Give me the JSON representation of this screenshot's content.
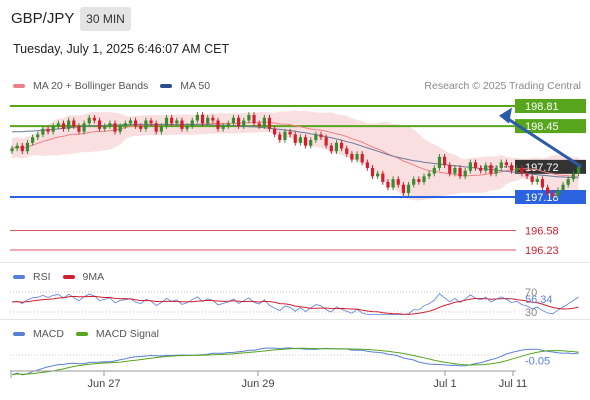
{
  "header": {
    "pair": "GBP/JPY",
    "timeframe": "30 MIN",
    "datetime": "Tuesday, July 1, 2025 6:46:07 AM CET",
    "credit": "Research © 2025 Trading Central"
  },
  "legend": {
    "ma20_label": "MA 20 + Bollinger Bands",
    "ma50_label": "MA 50",
    "rsi_label": "RSI",
    "rsi_ma_label": "9MA",
    "macd_label": "MACD",
    "macd_signal_label": "MACD Signal"
  },
  "colors": {
    "bull": "#3a8a2f",
    "bear": "#d0202e",
    "bollinger": "#f6c9cc",
    "ma20": "#f08088",
    "ma50": "#6a7a9a",
    "resistance": "#56a51c",
    "support": "#2b62e0",
    "target": "#d0202e",
    "arrow": "#2a5aa8",
    "current": "#333333",
    "rsi": "#5a7fd6",
    "rsi_ma": "#d0202e",
    "macd": "#5a7fd6",
    "macd_signal": "#56a51c"
  },
  "chart_data": {
    "type": "candlestick",
    "x_ticks": [
      "Jun 27",
      "Jun 29",
      "Jul 1",
      "Jul 11"
    ],
    "levels": [
      {
        "value": 198.81,
        "label": "198.81",
        "kind": "resistance"
      },
      {
        "value": 198.45,
        "label": "198.45",
        "kind": "resistance"
      },
      {
        "value": 197.72,
        "label": "197.72",
        "kind": "current"
      },
      {
        "value": 197.18,
        "label": "197.18",
        "kind": "support"
      },
      {
        "value": 196.58,
        "label": "196.58",
        "kind": "target"
      },
      {
        "value": 196.23,
        "label": "196.23",
        "kind": "target"
      }
    ],
    "price_closes": [
      198.05,
      198.1,
      198.0,
      198.15,
      198.25,
      198.3,
      198.4,
      198.35,
      198.45,
      198.5,
      198.4,
      198.55,
      198.45,
      198.35,
      198.5,
      198.6,
      198.55,
      198.4,
      198.45,
      198.5,
      198.35,
      198.45,
      198.5,
      198.55,
      198.45,
      198.4,
      198.55,
      198.5,
      198.35,
      198.45,
      198.6,
      198.5,
      198.55,
      198.4,
      198.45,
      198.55,
      198.65,
      198.5,
      198.6,
      198.55,
      198.4,
      198.45,
      198.5,
      198.6,
      198.45,
      198.55,
      198.65,
      198.5,
      198.45,
      198.6,
      198.4,
      198.3,
      198.2,
      198.35,
      198.3,
      198.15,
      198.25,
      198.1,
      198.2,
      198.3,
      198.25,
      198.1,
      198.0,
      198.15,
      198.05,
      197.95,
      197.85,
      197.95,
      197.8,
      197.7,
      197.55,
      197.6,
      197.45,
      197.35,
      197.5,
      197.4,
      197.25,
      197.4,
      197.5,
      197.45,
      197.55,
      197.6,
      197.7,
      197.9,
      197.75,
      197.6,
      197.7,
      197.55,
      197.65,
      197.8,
      197.7,
      197.65,
      197.75,
      197.6,
      197.7,
      197.8,
      197.75,
      197.65,
      197.7,
      197.6,
      197.55,
      197.45,
      197.5,
      197.35,
      197.25,
      197.2,
      197.3,
      197.4,
      197.5,
      197.6,
      197.72
    ],
    "ma50": [
      198.35,
      198.35,
      198.35,
      198.36,
      198.36,
      198.37,
      198.38,
      198.38,
      198.39,
      198.4,
      198.41,
      198.42,
      198.43,
      198.44,
      198.45,
      198.45,
      198.46,
      198.46,
      198.46,
      198.47,
      198.47,
      198.47,
      198.48,
      198.48,
      198.48,
      198.48,
      198.48,
      198.48,
      198.48,
      198.48,
      198.48,
      198.48,
      198.48,
      198.48,
      198.48,
      198.48,
      198.48,
      198.48,
      198.48,
      198.47,
      198.47,
      198.47,
      198.46,
      198.46,
      198.45,
      198.45,
      198.44,
      198.44,
      198.43,
      198.42,
      198.41,
      198.4,
      198.39,
      198.38,
      198.37,
      198.36,
      198.34,
      198.33,
      198.31,
      198.3,
      198.28,
      198.26,
      198.24,
      198.22,
      198.2,
      198.17,
      198.15,
      198.12,
      198.09,
      198.06,
      198.03,
      198.0,
      197.97,
      197.94,
      197.91,
      197.89,
      197.87,
      197.85,
      197.83,
      197.82,
      197.8,
      197.79,
      197.78,
      197.77,
      197.76,
      197.75,
      197.74,
      197.73,
      197.72,
      197.71,
      197.7,
      197.69,
      197.68,
      197.67,
      197.66,
      197.65,
      197.64,
      197.63,
      197.62,
      197.61,
      197.6,
      197.59,
      197.58,
      197.57,
      197.56,
      197.55,
      197.54,
      197.54,
      197.53,
      197.53,
      197.52
    ],
    "rsi": {
      "ticks": [
        70,
        30
      ],
      "last": 56.34,
      "last_label": "56.34"
    },
    "macd": {
      "last": -0.05,
      "last_label": "-0.05"
    }
  }
}
